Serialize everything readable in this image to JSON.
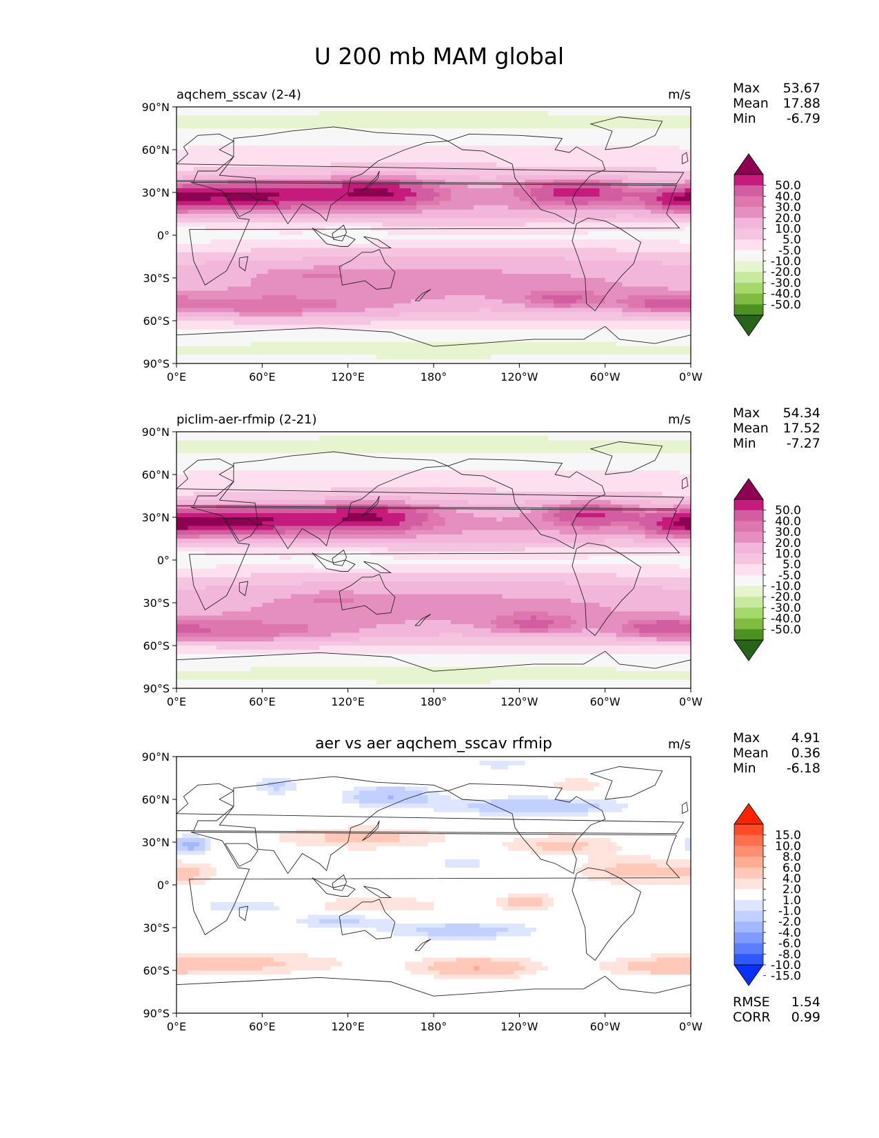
{
  "figure": {
    "title": "U 200 mb MAM global"
  },
  "colors": {
    "seq_negative": [
      "#276419",
      "#4d9221",
      "#7fbc41",
      "#a6d96a",
      "#c7e9a0",
      "#e6f5d0"
    ],
    "seq_neutral": "#f7f7f7",
    "seq_positive": [
      "#fde0ef",
      "#f5c4e0",
      "#f1b6da",
      "#e58fc1",
      "#de77ae",
      "#d35da1",
      "#c51b7d",
      "#8e0152"
    ],
    "diff_negative": [
      "#0a30ff",
      "#2e59ff",
      "#5b7dff",
      "#7f9bff",
      "#a3b7ff",
      "#c2d0ff",
      "#dee6ff"
    ],
    "diff_neutral": "#ffffff",
    "diff_positive": [
      "#ffe3dc",
      "#ffc8b8",
      "#ffab93",
      "#ff8e70",
      "#ff6e4d",
      "#ff4b26",
      "#ff2200"
    ]
  },
  "chart_data": [
    {
      "type": "heatmap",
      "title": "aqchem_sscav (2-4)",
      "units": "m/s",
      "stats": {
        "max_label": "Max",
        "max": "53.67",
        "mean_label": "Mean",
        "mean": "17.88",
        "min_label": "Min",
        "min": "-6.79"
      },
      "colorbar": {
        "scale": "seq",
        "ticks": [
          "50.0",
          "40.0",
          "30.0",
          "20.0",
          "10.0",
          "5.0",
          "-5.0",
          "-10.0",
          "-20.0",
          "-30.0",
          "-40.0",
          "-50.0"
        ]
      },
      "xlim": [
        0,
        360
      ],
      "ylim": [
        -90,
        90
      ],
      "xticks": [
        "0°E",
        "60°E",
        "120°E",
        "180°",
        "120°W",
        "60°W",
        "0°W"
      ],
      "yticks": [
        "90°N",
        "60°N",
        "30°N",
        "0°",
        "30°S",
        "60°S",
        "90°S"
      ],
      "features": [
        {
          "lon": 180,
          "lat": 0,
          "slon": 400,
          "slat": 90,
          "v": 9
        },
        {
          "lon": 180,
          "lat": 25,
          "slon": 400,
          "slat": 22,
          "v": 12
        },
        {
          "lon": 180,
          "lat": -35,
          "slon": 400,
          "slat": 24,
          "v": 14
        },
        {
          "lon": 180,
          "lat": 0,
          "slon": 400,
          "slat": 11,
          "v": -9
        },
        {
          "lon": 50,
          "lat": 28,
          "slon": 55,
          "slat": 9,
          "v": 35
        },
        {
          "lon": 140,
          "lat": 30,
          "slon": 40,
          "slat": 9,
          "v": 32
        },
        {
          "lon": 280,
          "lat": 30,
          "slon": 35,
          "slat": 8,
          "v": 28
        },
        {
          "lon": 355,
          "lat": 25,
          "slon": 25,
          "slat": 8,
          "v": 25
        },
        {
          "lon": 60,
          "lat": -50,
          "slon": 80,
          "slat": 8,
          "v": 14
        },
        {
          "lon": 270,
          "lat": -45,
          "slon": 30,
          "slat": 7,
          "v": 14
        },
        {
          "lon": 340,
          "lat": -48,
          "slon": 30,
          "slat": 7,
          "v": 14
        },
        {
          "lon": 120,
          "lat": 2,
          "slon": 15,
          "slat": 6,
          "v": -9
        },
        {
          "lon": 8,
          "lat": 2,
          "slon": 10,
          "slat": 6,
          "v": -7
        },
        {
          "lon": 100,
          "lat": -28,
          "slon": 30,
          "slat": 5,
          "v": 6
        },
        {
          "lon": 180,
          "lat": 80,
          "slon": 400,
          "slat": 10,
          "v": -12
        },
        {
          "lon": 180,
          "lat": -80,
          "slon": 400,
          "slat": 10,
          "v": -12
        }
      ]
    },
    {
      "type": "heatmap",
      "title": "piclim-aer-rfmip (2-21)",
      "units": "m/s",
      "stats": {
        "max_label": "Max",
        "max": "54.34",
        "mean_label": "Mean",
        "mean": "17.52",
        "min_label": "Min",
        "min": "-7.27"
      },
      "colorbar": {
        "scale": "seq",
        "ticks": [
          "50.0",
          "40.0",
          "30.0",
          "20.0",
          "10.0",
          "5.0",
          "-5.0",
          "-10.0",
          "-20.0",
          "-30.0",
          "-40.0",
          "-50.0"
        ]
      },
      "xlim": [
        0,
        360
      ],
      "ylim": [
        -90,
        90
      ],
      "xticks": [
        "0°E",
        "60°E",
        "120°E",
        "180°",
        "120°W",
        "60°W",
        "0°W"
      ],
      "yticks": [
        "90°N",
        "60°N",
        "30°N",
        "0°",
        "30°S",
        "60°S",
        "90°S"
      ],
      "features": [
        {
          "lon": 180,
          "lat": 0,
          "slon": 400,
          "slat": 90,
          "v": 9
        },
        {
          "lon": 180,
          "lat": 25,
          "slon": 400,
          "slat": 22,
          "v": 12
        },
        {
          "lon": 180,
          "lat": -35,
          "slon": 400,
          "slat": 24,
          "v": 14
        },
        {
          "lon": 180,
          "lat": 0,
          "slon": 400,
          "slat": 11,
          "v": -9
        },
        {
          "lon": 45,
          "lat": 28,
          "slon": 55,
          "slat": 9,
          "v": 36
        },
        {
          "lon": 135,
          "lat": 30,
          "slon": 40,
          "slat": 9,
          "v": 31
        },
        {
          "lon": 290,
          "lat": 32,
          "slon": 30,
          "slat": 8,
          "v": 25
        },
        {
          "lon": 355,
          "lat": 25,
          "slon": 25,
          "slat": 8,
          "v": 25
        },
        {
          "lon": 40,
          "lat": -50,
          "slon": 75,
          "slat": 8,
          "v": 15
        },
        {
          "lon": 250,
          "lat": -45,
          "slon": 30,
          "slat": 7,
          "v": 15
        },
        {
          "lon": 340,
          "lat": -48,
          "slon": 30,
          "slat": 7,
          "v": 15
        },
        {
          "lon": 120,
          "lat": 0,
          "slon": 18,
          "slat": 6,
          "v": -10
        },
        {
          "lon": 10,
          "lat": 0,
          "slon": 10,
          "slat": 6,
          "v": -7
        },
        {
          "lon": 110,
          "lat": -28,
          "slon": 25,
          "slat": 5,
          "v": 6
        },
        {
          "lon": 180,
          "lat": 80,
          "slon": 400,
          "slat": 10,
          "v": -12
        },
        {
          "lon": 180,
          "lat": -80,
          "slon": 400,
          "slat": 10,
          "v": -12
        }
      ]
    },
    {
      "type": "heatmap",
      "title": "aer vs aer aqchem_sscav rfmip",
      "units": "m/s",
      "stats": {
        "max_label": "Max",
        "max": "4.91",
        "mean_label": "Mean",
        "mean": "0.36",
        "min_label": "Min",
        "min": "-6.18"
      },
      "extra_stats": {
        "rmse_label": "RMSE",
        "rmse": "1.54",
        "corr_label": "CORR",
        "corr": "0.99"
      },
      "colorbar": {
        "scale": "diff",
        "ticks": [
          "15.0",
          "10.0",
          "8.0",
          "6.0",
          "4.0",
          "2.0",
          "1.0",
          "-1.0",
          "-2.0",
          "-4.0",
          "-6.0",
          "-8.0",
          "-10.0",
          "-15.0"
        ]
      },
      "xlim": [
        0,
        360
      ],
      "ylim": [
        -90,
        90
      ],
      "xticks": [
        "0°E",
        "60°E",
        "120°E",
        "180°",
        "120°W",
        "60°W",
        "0°W"
      ],
      "yticks": [
        "90°N",
        "60°N",
        "30°N",
        "0°",
        "30°S",
        "60°S",
        "90°S"
      ],
      "features": [
        {
          "lon": 10,
          "lat": 28,
          "slon": 12,
          "slat": 6,
          "v": -5
        },
        {
          "lon": 70,
          "lat": 70,
          "slon": 15,
          "slat": 6,
          "v": -2.5
        },
        {
          "lon": 150,
          "lat": 62,
          "slon": 30,
          "slat": 7,
          "v": -4
        },
        {
          "lon": 250,
          "lat": 55,
          "slon": 60,
          "slat": 6,
          "v": -3.5
        },
        {
          "lon": 215,
          "lat": 85,
          "slon": 50,
          "slat": 5,
          "v": -1.5
        },
        {
          "lon": 130,
          "lat": 33,
          "slon": 60,
          "slat": 8,
          "v": 2.5
        },
        {
          "lon": 270,
          "lat": 28,
          "slon": 40,
          "slat": 7,
          "v": 2.5
        },
        {
          "lon": 320,
          "lat": 10,
          "slon": 40,
          "slat": 10,
          "v": 2.5
        },
        {
          "lon": 10,
          "lat": 8,
          "slon": 20,
          "slat": 8,
          "v": 2
        },
        {
          "lon": 140,
          "lat": -15,
          "slon": 50,
          "slat": 7,
          "v": 2
        },
        {
          "lon": 245,
          "lat": -12,
          "slon": 20,
          "slat": 6,
          "v": 3
        },
        {
          "lon": 50,
          "lat": -15,
          "slon": 30,
          "slat": 3,
          "v": -2.5
        },
        {
          "lon": 115,
          "lat": -25,
          "slon": 35,
          "slat": 5,
          "v": -2.5
        },
        {
          "lon": 200,
          "lat": -32,
          "slon": 50,
          "slat": 6,
          "v": -3
        },
        {
          "lon": 40,
          "lat": -55,
          "slon": 80,
          "slat": 8,
          "v": 2.5
        },
        {
          "lon": 210,
          "lat": -58,
          "slon": 40,
          "slat": 7,
          "v": 4
        },
        {
          "lon": 340,
          "lat": -58,
          "slon": 40,
          "slat": 6,
          "v": 2
        },
        {
          "lon": 180,
          "lat": 85,
          "slon": 30,
          "slat": 4,
          "v": 1.5
        },
        {
          "lon": 200,
          "lat": 15,
          "slon": 20,
          "slat": 5,
          "v": -1.5
        },
        {
          "lon": 280,
          "lat": 70,
          "slon": 20,
          "slat": 5,
          "v": 2
        }
      ]
    }
  ]
}
